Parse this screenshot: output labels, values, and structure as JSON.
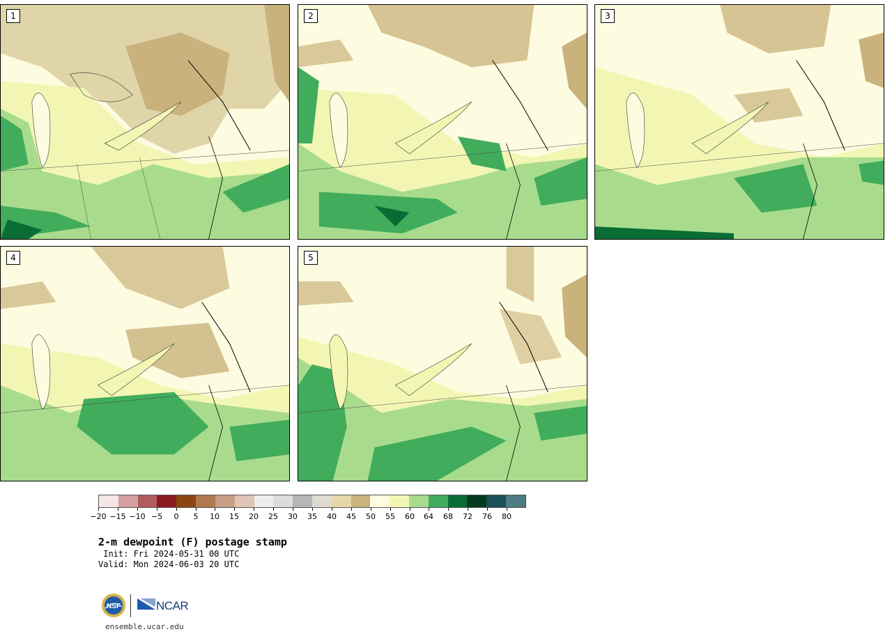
{
  "panels": [
    {
      "id": "p1",
      "label": "1"
    },
    {
      "id": "p2",
      "label": "2"
    },
    {
      "id": "p3",
      "label": "3"
    },
    {
      "id": "p4",
      "label": "4"
    },
    {
      "id": "p5",
      "label": "5"
    }
  ],
  "colorbar": {
    "colors": [
      "#f2e6e6",
      "#d49fa0",
      "#b05b5f",
      "#8b1a22",
      "#8b4513",
      "#b07850",
      "#c89e86",
      "#e0c4b6",
      "#ececec",
      "#dcdcdc",
      "#b6b6b6",
      "#dedcd0",
      "#e6d7a8",
      "#c9b27c",
      "#fdfce0",
      "#f3f6b3",
      "#a8dc8c",
      "#41ac5c",
      "#0a6b34",
      "#043a20",
      "#1a5058",
      "#4d7c82"
    ],
    "tick_labels": [
      "−20",
      "−15",
      "−10",
      "−5",
      "0",
      "5",
      "10",
      "15",
      "20",
      "25",
      "30",
      "35",
      "40",
      "45",
      "50",
      "55",
      "60",
      "64",
      "68",
      "72",
      "76",
      "80"
    ]
  },
  "title": "2-m dewpoint (F) postage stamp",
  "init_line": " Init: Fri 2024-05-31 00 UTC",
  "valid_line": "Valid: Mon 2024-06-03 20 UTC",
  "logos": {
    "nsf": "NSF",
    "ncar": "NCAR"
  },
  "website": "ensemble.ucar.edu"
}
